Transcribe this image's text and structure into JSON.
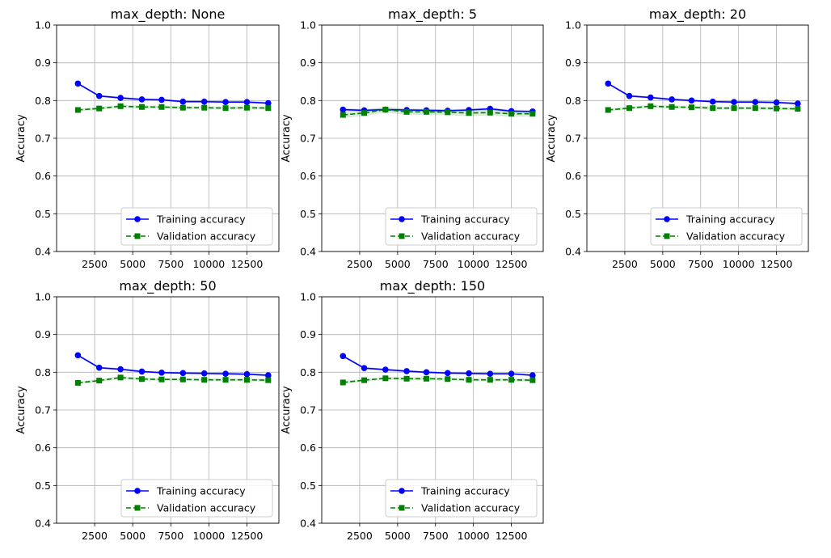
{
  "figure": {
    "ylabel": "Accuracy",
    "y_ticks": [
      0.4,
      0.5,
      0.6,
      0.7,
      0.8,
      0.9,
      1.0
    ],
    "x_ticks": [
      2500,
      5000,
      7500,
      10000,
      12500
    ],
    "legend": {
      "train_label": "Training accuracy",
      "val_label": "Validation accuracy"
    },
    "colors": {
      "train": "#0000ff",
      "val": "#008000",
      "grid": "#b0b0b0"
    }
  },
  "chart_data": [
    {
      "type": "line",
      "title": "max_depth: None",
      "xlabel": "",
      "ylabel": "Accuracy",
      "ylim": [
        0.4,
        1.0
      ],
      "xlim": [
        0,
        14600
      ],
      "grid": true,
      "legend_position": "lower-right",
      "x": [
        1400,
        2800,
        4200,
        5600,
        6900,
        8300,
        9700,
        11100,
        12500,
        13900
      ],
      "series": [
        {
          "name": "Training accuracy",
          "values": [
            0.845,
            0.812,
            0.807,
            0.803,
            0.802,
            0.797,
            0.797,
            0.796,
            0.796,
            0.793
          ],
          "spread": 0.003
        },
        {
          "name": "Validation accuracy",
          "values": [
            0.775,
            0.779,
            0.785,
            0.783,
            0.783,
            0.781,
            0.781,
            0.78,
            0.781,
            0.78
          ],
          "spread": 0.004
        }
      ]
    },
    {
      "type": "line",
      "title": "max_depth: 5",
      "xlabel": "",
      "ylabel": "Accuracy",
      "ylim": [
        0.4,
        1.0
      ],
      "xlim": [
        0,
        14600
      ],
      "grid": true,
      "legend_position": "lower-right",
      "x": [
        1400,
        2800,
        4200,
        5600,
        6900,
        8300,
        9700,
        11100,
        12500,
        13900
      ],
      "series": [
        {
          "name": "Training accuracy",
          "values": [
            0.776,
            0.774,
            0.776,
            0.775,
            0.774,
            0.773,
            0.775,
            0.778,
            0.772,
            0.771
          ],
          "spread": 0.004
        },
        {
          "name": "Validation accuracy",
          "values": [
            0.762,
            0.767,
            0.776,
            0.77,
            0.77,
            0.769,
            0.767,
            0.768,
            0.765,
            0.765
          ],
          "spread": 0.008
        }
      ]
    },
    {
      "type": "line",
      "title": "max_depth: 20",
      "xlabel": "",
      "ylabel": "Accuracy",
      "ylim": [
        0.4,
        1.0
      ],
      "xlim": [
        0,
        14600
      ],
      "grid": true,
      "legend_position": "lower-right",
      "x": [
        1400,
        2800,
        4200,
        5600,
        6900,
        8300,
        9700,
        11100,
        12500,
        13900
      ],
      "series": [
        {
          "name": "Training accuracy",
          "values": [
            0.845,
            0.812,
            0.808,
            0.803,
            0.8,
            0.797,
            0.796,
            0.796,
            0.795,
            0.792
          ],
          "spread": 0.003
        },
        {
          "name": "Validation accuracy",
          "values": [
            0.775,
            0.78,
            0.785,
            0.783,
            0.782,
            0.78,
            0.78,
            0.78,
            0.779,
            0.778
          ],
          "spread": 0.004
        }
      ]
    },
    {
      "type": "line",
      "title": "max_depth: 50",
      "xlabel": "",
      "ylabel": "Accuracy",
      "ylim": [
        0.4,
        1.0
      ],
      "xlim": [
        0,
        14600
      ],
      "grid": true,
      "legend_position": "lower-right",
      "x": [
        1400,
        2800,
        4200,
        5600,
        6900,
        8300,
        9700,
        11100,
        12500,
        13900
      ],
      "series": [
        {
          "name": "Training accuracy",
          "values": [
            0.845,
            0.812,
            0.808,
            0.802,
            0.799,
            0.798,
            0.797,
            0.796,
            0.795,
            0.792
          ],
          "spread": 0.003
        },
        {
          "name": "Validation accuracy",
          "values": [
            0.772,
            0.778,
            0.786,
            0.782,
            0.781,
            0.781,
            0.78,
            0.78,
            0.78,
            0.779
          ],
          "spread": 0.004
        }
      ]
    },
    {
      "type": "line",
      "title": "max_depth: 150",
      "xlabel": "",
      "ylabel": "Accuracy",
      "ylim": [
        0.4,
        1.0
      ],
      "xlim": [
        0,
        14600
      ],
      "grid": true,
      "legend_position": "lower-right",
      "x": [
        1400,
        2800,
        4200,
        5600,
        6900,
        8300,
        9700,
        11100,
        12500,
        13900
      ],
      "series": [
        {
          "name": "Training accuracy",
          "values": [
            0.843,
            0.811,
            0.807,
            0.803,
            0.8,
            0.798,
            0.797,
            0.796,
            0.796,
            0.792
          ],
          "spread": 0.003
        },
        {
          "name": "Validation accuracy",
          "values": [
            0.773,
            0.779,
            0.784,
            0.783,
            0.783,
            0.782,
            0.78,
            0.78,
            0.78,
            0.779
          ],
          "spread": 0.004
        }
      ]
    }
  ]
}
